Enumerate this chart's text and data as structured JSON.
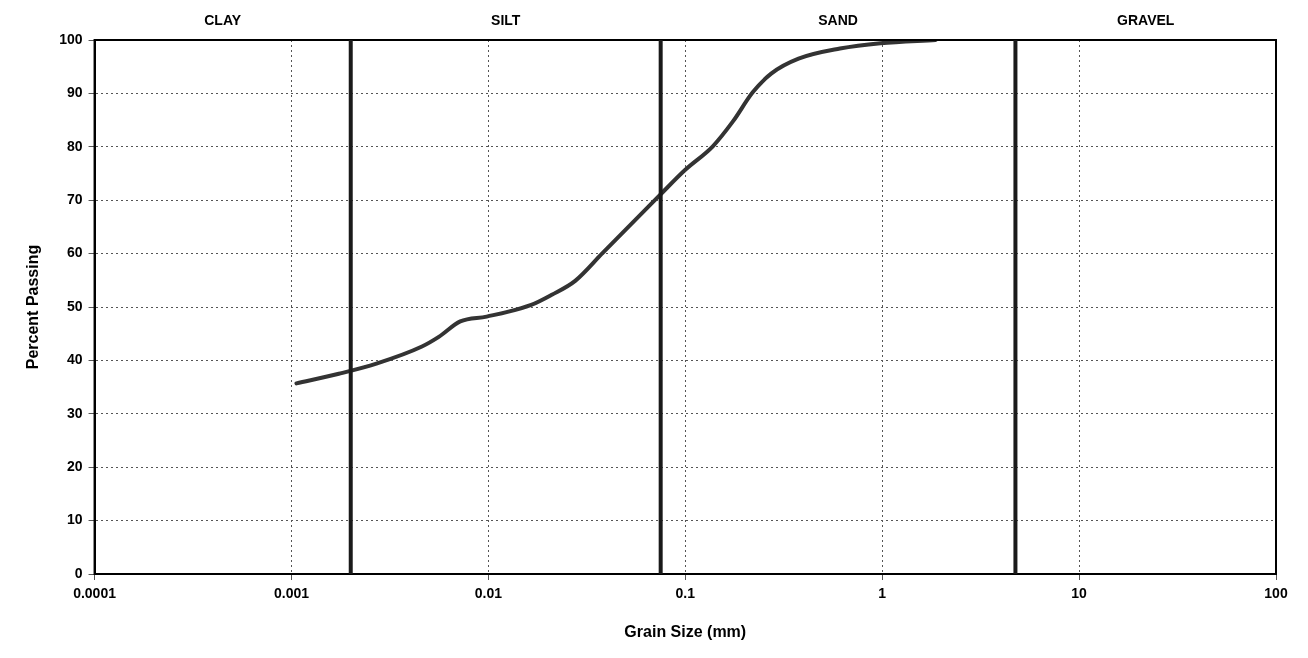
{
  "chart_data": {
    "type": "line",
    "xlabel": "Grain Size (mm)",
    "ylabel": "Percent Passing",
    "x": [
      0.00106,
      0.00174,
      0.0027,
      0.0046,
      0.0056,
      0.0072,
      0.0098,
      0.0165,
      0.021,
      0.0276,
      0.0382,
      0.074,
      0.1,
      0.138,
      0.175,
      0.22,
      0.273,
      0.376,
      0.61,
      0.98,
      1.87
    ],
    "series": [
      {
        "color": "#333333",
        "values": [
          35.7,
          37.5,
          39.4,
          42.6,
          44.4,
          47.3,
          48.2,
          50.4,
          52.3,
          54.9,
          60.2,
          70.9,
          75.7,
          80.1,
          84.8,
          90.2,
          93.7,
          96.5,
          98.4,
          99.4,
          100
        ]
      }
    ],
    "log": "x",
    "xlim": [
      0.0001,
      100
    ],
    "xticks": [
      0.0001,
      0.001,
      0.01,
      0.1,
      1,
      10,
      100
    ],
    "ylim": [
      0,
      100
    ],
    "yticks": [
      0,
      10,
      20,
      30,
      40,
      50,
      60,
      70,
      80,
      90,
      100
    ],
    "grid": true,
    "legend": false,
    "marker": "none",
    "line_style": "solid",
    "ref_lines": [
      {
        "axis": "x",
        "value": 0.002,
        "color": "#1a1a1a"
      },
      {
        "axis": "x",
        "value": 0.075,
        "color": "#1a1a1a"
      },
      {
        "axis": "x",
        "value": 4.75,
        "color": "#1a1a1a"
      }
    ],
    "annotations": [
      "CLAY",
      "SILT",
      "SAND",
      "GRAVEL"
    ]
  }
}
